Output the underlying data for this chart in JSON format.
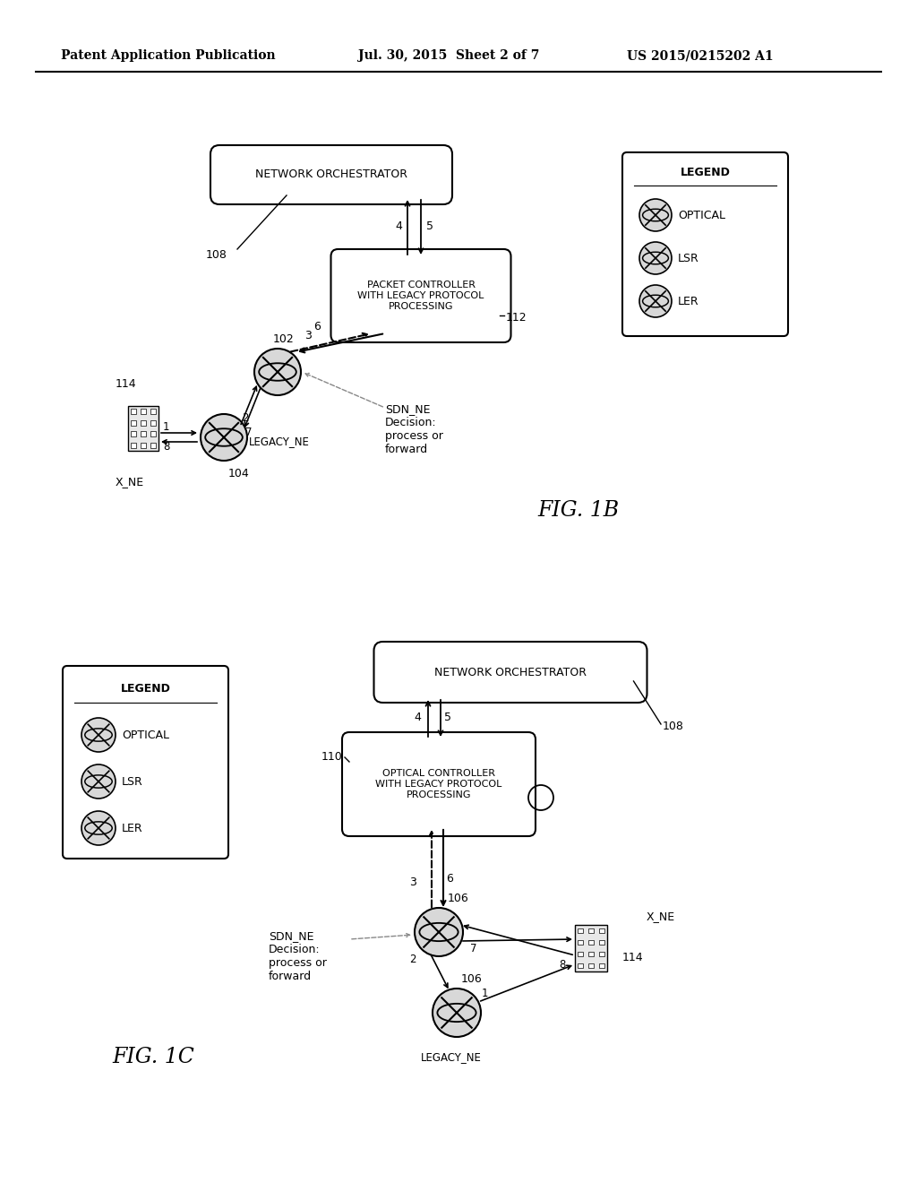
{
  "bg_color": "#ffffff",
  "header_left": "Patent Application Publication",
  "header_mid": "Jul. 30, 2015  Sheet 2 of 7",
  "header_right": "US 2015/0215202 A1",
  "fig1b_title": "FIG. 1B",
  "fig1c_title": "FIG. 1C",
  "legend_title": "LEGEND",
  "legend_items": [
    "OPTICAL",
    "LSR",
    "LER"
  ],
  "orchestrator_label": "NETWORK ORCHESTRATOR",
  "packet_controller_label": "PACKET CONTROLLER\nWITH LEGACY PROTOCOL\nPROCESSING",
  "optical_controller_label": "OPTICAL CONTROLLER\nWITH LEGACY PROTOCOL\nPROCESSING",
  "sdn_ne_label": "SDN_NE\nDecision:\nprocess or\nforward",
  "legacy_ne_label": "LEGACY_NE",
  "x_ne_label": "X_NE"
}
